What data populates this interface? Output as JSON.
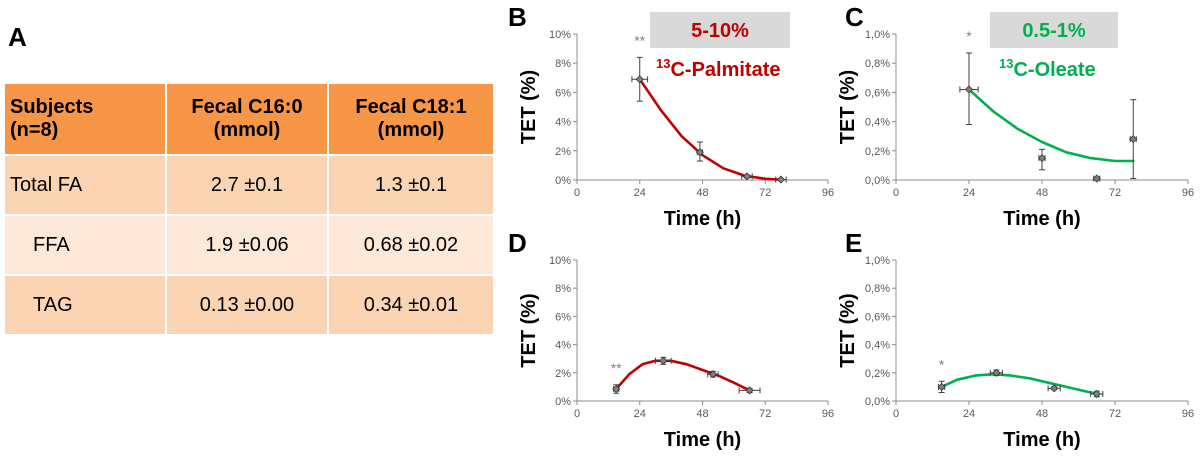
{
  "panels": {
    "a": "A",
    "b": "B",
    "c": "C",
    "d": "D",
    "e": "E"
  },
  "table": {
    "headers": [
      "Subjects (n=8)",
      "Fecal C16:0 (mmol)",
      "Fecal C18:1 (mmol)"
    ],
    "header_lines": [
      [
        "Subjects",
        "(n=8)"
      ],
      [
        "Fecal C16:0",
        "(mmol)"
      ],
      [
        "Fecal C18:1",
        "(mmol)"
      ]
    ],
    "rows": [
      {
        "label": "Total FA",
        "c16": "2.7 ±0.1",
        "c18": "1.3 ±0.1"
      },
      {
        "label": "FFA",
        "c16": "1.9 ±0.06",
        "c18": "0.68 ±0.02"
      },
      {
        "label": "TAG",
        "c16": "0.13 ±0.00",
        "c18": "0.34 ±0.01"
      }
    ],
    "colors": {
      "header": "#f79646",
      "row_dark": "#fbd4b4",
      "row_light": "#fde9d9"
    }
  },
  "chart_data": [
    {
      "id": "B",
      "type": "scatter",
      "xlabel": "Time (h)",
      "ylabel": "TET (%)",
      "xlim": [
        0,
        96
      ],
      "ylim": [
        0,
        10
      ],
      "xticks": [
        0,
        24,
        48,
        72,
        96
      ],
      "yticks": [
        "0%",
        "2%",
        "4%",
        "6%",
        "8%",
        "10%"
      ],
      "color": "#c00000",
      "badge": {
        "text": "5-10%",
        "background": "#d9d9d9",
        "color": "#c00000"
      },
      "tracer": {
        "sup": "13",
        "text": "C-Palmitate"
      },
      "points": [
        {
          "x": 24,
          "y": 6.9,
          "xerr": 3,
          "ylo": 5.4,
          "yhi": 8.4,
          "sig": "**"
        },
        {
          "x": 47,
          "y": 1.9,
          "xerr": 1,
          "ylo": 1.3,
          "yhi": 2.6
        },
        {
          "x": 65,
          "y": 0.25,
          "xerr": 2,
          "ylo": 0.15,
          "yhi": 0.35
        },
        {
          "x": 78,
          "y": 0.03,
          "xerr": 2,
          "ylo": 0.0,
          "yhi": 0.06
        }
      ],
      "curve": [
        [
          24,
          6.9
        ],
        [
          32,
          4.8
        ],
        [
          40,
          3.0
        ],
        [
          48,
          1.7
        ],
        [
          56,
          0.8
        ],
        [
          64,
          0.3
        ],
        [
          72,
          0.08
        ],
        [
          78,
          0.02
        ]
      ]
    },
    {
      "id": "C",
      "type": "scatter",
      "xlabel": "Time (h)",
      "ylabel": "TET (%)",
      "xlim": [
        0,
        96
      ],
      "ylim": [
        0,
        1
      ],
      "xticks": [
        0,
        24,
        48,
        72,
        96
      ],
      "yticks": [
        "0,0%",
        "0,2%",
        "0,4%",
        "0,6%",
        "0,8%",
        "1,0%"
      ],
      "color": "#00b050",
      "badge": {
        "text": "0.5-1%",
        "background": "#d9d9d9",
        "color": "#00b050"
      },
      "tracer": {
        "sup": "13",
        "text": "C-Oleate"
      },
      "points": [
        {
          "x": 24,
          "y": 0.62,
          "xerr": 3,
          "ylo": 0.38,
          "yhi": 0.87,
          "sig": "*"
        },
        {
          "x": 48,
          "y": 0.15,
          "xerr": 1,
          "ylo": 0.07,
          "yhi": 0.21
        },
        {
          "x": 66,
          "y": 0.01,
          "xerr": 1,
          "ylo": 0.0,
          "yhi": 0.02
        },
        {
          "x": 78,
          "y": 0.28,
          "xerr": 1,
          "ylo": 0.01,
          "yhi": 0.55
        }
      ],
      "curve": [
        [
          24,
          0.62
        ],
        [
          32,
          0.47
        ],
        [
          40,
          0.35
        ],
        [
          48,
          0.26
        ],
        [
          56,
          0.19
        ],
        [
          64,
          0.15
        ],
        [
          72,
          0.13
        ],
        [
          78,
          0.13
        ]
      ]
    },
    {
      "id": "D",
      "type": "scatter",
      "xlabel": "Time (h)",
      "ylabel": "TET (%)",
      "xlim": [
        0,
        96
      ],
      "ylim": [
        0,
        10
      ],
      "xticks": [
        0,
        24,
        48,
        72,
        96
      ],
      "yticks": [
        "0%",
        "2%",
        "4%",
        "6%",
        "8%",
        "10%"
      ],
      "color": "#c00000",
      "points": [
        {
          "x": 15,
          "y": 0.85,
          "xerr": 1,
          "ylo": 0.55,
          "yhi": 1.15,
          "sig": "**"
        },
        {
          "x": 33,
          "y": 2.85,
          "xerr": 3,
          "ylo": 2.6,
          "yhi": 3.1
        },
        {
          "x": 52,
          "y": 1.9,
          "xerr": 2,
          "ylo": 1.7,
          "yhi": 2.1
        },
        {
          "x": 66,
          "y": 0.75,
          "xerr": 4,
          "ylo": 0.6,
          "yhi": 0.9
        }
      ],
      "curve": [
        [
          15,
          0.85
        ],
        [
          20,
          1.9
        ],
        [
          25,
          2.6
        ],
        [
          30,
          2.85
        ],
        [
          36,
          2.85
        ],
        [
          42,
          2.6
        ],
        [
          48,
          2.2
        ],
        [
          54,
          1.8
        ],
        [
          60,
          1.3
        ],
        [
          66,
          0.75
        ]
      ]
    },
    {
      "id": "E",
      "type": "scatter",
      "xlabel": "Time (h)",
      "ylabel": "TET (%)",
      "xlim": [
        0,
        96
      ],
      "ylim": [
        0,
        1
      ],
      "xticks": [
        0,
        24,
        48,
        72,
        96
      ],
      "yticks": [
        "0,0%",
        "0,2%",
        "0,4%",
        "0,6%",
        "0,8%",
        "1,0%"
      ],
      "color": "#00b050",
      "points": [
        {
          "x": 15,
          "y": 0.1,
          "xerr": 1,
          "ylo": 0.06,
          "yhi": 0.14,
          "sig": "*"
        },
        {
          "x": 33,
          "y": 0.2,
          "xerr": 2,
          "ylo": 0.18,
          "yhi": 0.22
        },
        {
          "x": 52,
          "y": 0.09,
          "xerr": 2,
          "ylo": 0.08,
          "yhi": 0.1
        },
        {
          "x": 66,
          "y": 0.05,
          "xerr": 2,
          "ylo": 0.03,
          "yhi": 0.07
        }
      ],
      "curve": [
        [
          15,
          0.1
        ],
        [
          20,
          0.15
        ],
        [
          26,
          0.18
        ],
        [
          32,
          0.19
        ],
        [
          38,
          0.18
        ],
        [
          44,
          0.16
        ],
        [
          50,
          0.13
        ],
        [
          56,
          0.1
        ],
        [
          62,
          0.07
        ],
        [
          66,
          0.05
        ]
      ]
    }
  ]
}
